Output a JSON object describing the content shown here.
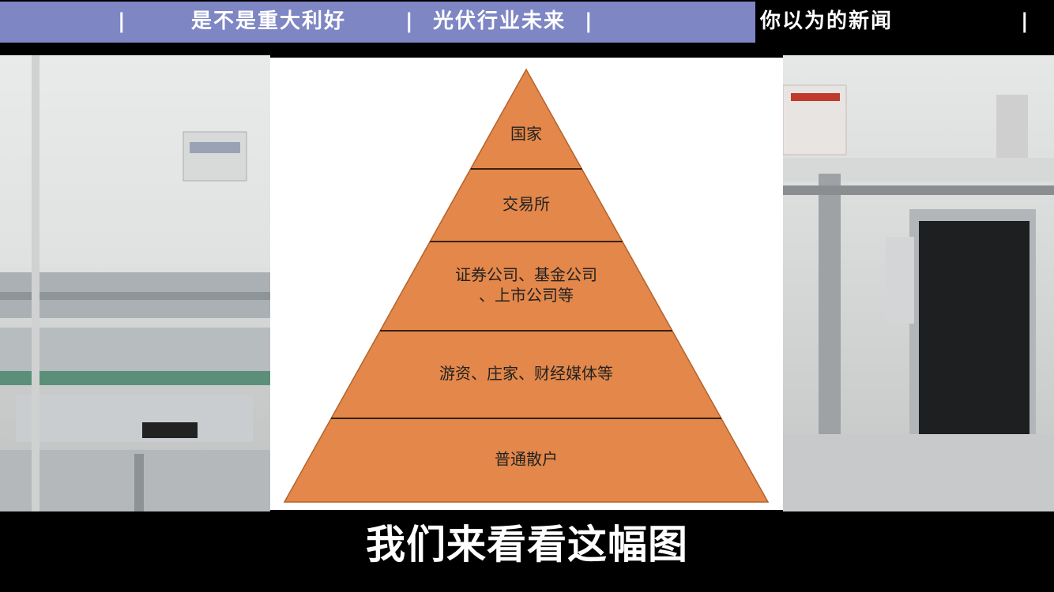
{
  "header": {
    "left_text_1": "是不是重大利好",
    "left_text_2": "光伏行业未来",
    "right_text": "你以为的新闻",
    "separator": "|",
    "colors": {
      "bar": "#7e86c4",
      "text": "#ffffff"
    }
  },
  "diagram": {
    "levels": [
      {
        "lines": [
          "国家"
        ]
      },
      {
        "lines": [
          "交易所"
        ]
      },
      {
        "lines": [
          "证券公司、基金公司",
          "、上市公司等"
        ]
      },
      {
        "lines": [
          "游资、庄家、财经媒体等"
        ]
      },
      {
        "lines": [
          "普通散户"
        ]
      }
    ],
    "fill_color": "#e3874a",
    "line_color": "#000000"
  },
  "subtitle": {
    "text": "我们来看看这幅图"
  }
}
